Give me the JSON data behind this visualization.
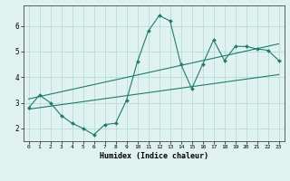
{
  "bg_color": "#dff2f0",
  "grid_color": "#b8dbd8",
  "line_color": "#1e7b6e",
  "marker_color": "#1e7b6e",
  "xlabel": "Humidex (Indice chaleur)",
  "xlim": [
    -0.5,
    23.5
  ],
  "ylim": [
    1.5,
    6.8
  ],
  "yticks": [
    2,
    3,
    4,
    5,
    6
  ],
  "xticks": [
    0,
    1,
    2,
    3,
    4,
    5,
    6,
    7,
    8,
    9,
    10,
    11,
    12,
    13,
    14,
    15,
    16,
    17,
    18,
    19,
    20,
    21,
    22,
    23
  ],
  "line1_x": [
    0,
    1,
    2,
    3,
    4,
    5,
    6,
    7,
    8,
    9,
    10,
    11,
    12,
    13,
    14,
    15,
    16,
    17,
    18,
    19,
    20,
    21,
    22,
    23
  ],
  "line1_y": [
    2.8,
    3.3,
    3.0,
    2.5,
    2.2,
    2.0,
    1.75,
    2.15,
    2.2,
    3.1,
    4.6,
    5.8,
    6.4,
    6.2,
    4.5,
    3.55,
    4.5,
    5.45,
    4.65,
    5.2,
    5.2,
    5.1,
    5.05,
    4.65
  ],
  "line2_x": [
    0,
    23
  ],
  "line2_y": [
    2.75,
    4.1
  ],
  "line3_x": [
    0,
    23
  ],
  "line3_y": [
    3.15,
    5.3
  ]
}
